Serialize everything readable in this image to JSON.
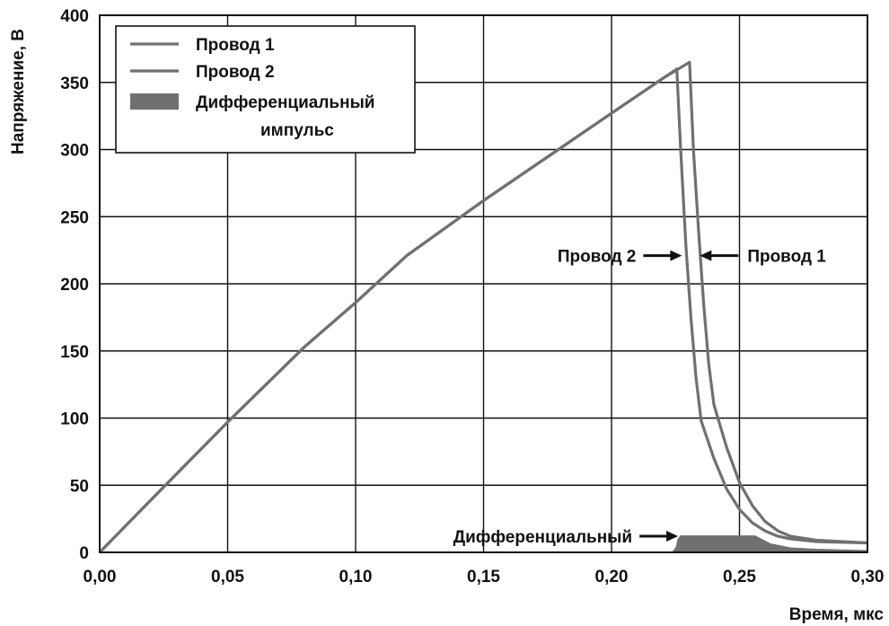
{
  "chart_data": {
    "type": "line",
    "title": "",
    "xlabel": "Время, мкс",
    "ylabel": "Напряжение, В",
    "xlim": [
      0,
      0.3
    ],
    "ylim": [
      0,
      400
    ],
    "grid": true,
    "legend_position": "top-left",
    "x_ticks": [
      {
        "value": 0.0,
        "label": "0,00"
      },
      {
        "value": 0.05,
        "label": "0,05"
      },
      {
        "value": 0.1,
        "label": "0,10"
      },
      {
        "value": 0.15,
        "label": "0,15"
      },
      {
        "value": 0.2,
        "label": "0,20"
      },
      {
        "value": 0.25,
        "label": "0,25"
      },
      {
        "value": 0.3,
        "label": "0,30"
      }
    ],
    "y_ticks": [
      {
        "value": 0,
        "label": "0"
      },
      {
        "value": 50,
        "label": "50"
      },
      {
        "value": 100,
        "label": "100"
      },
      {
        "value": 150,
        "label": "150"
      },
      {
        "value": 200,
        "label": "200"
      },
      {
        "value": 250,
        "label": "250"
      },
      {
        "value": 300,
        "label": "300"
      },
      {
        "value": 350,
        "label": "350"
      },
      {
        "value": 400,
        "label": "400"
      }
    ],
    "series": [
      {
        "name": "Провод 1",
        "kind": "line",
        "color": "#707070",
        "points": [
          [
            0,
            0
          ],
          [
            0.02,
            39
          ],
          [
            0.05,
            97
          ],
          [
            0.08,
            153
          ],
          [
            0.1,
            186
          ],
          [
            0.12,
            221
          ],
          [
            0.15,
            262
          ],
          [
            0.18,
            301
          ],
          [
            0.2,
            327
          ],
          [
            0.22,
            353
          ],
          [
            0.2305,
            365
          ],
          [
            0.232,
            300
          ],
          [
            0.234,
            240
          ],
          [
            0.236,
            185
          ],
          [
            0.238,
            140
          ],
          [
            0.24,
            110
          ],
          [
            0.245,
            78
          ],
          [
            0.25,
            52
          ],
          [
            0.255,
            35
          ],
          [
            0.26,
            23
          ],
          [
            0.265,
            16
          ],
          [
            0.27,
            12
          ],
          [
            0.28,
            9
          ],
          [
            0.29,
            8
          ],
          [
            0.3,
            7
          ]
        ]
      },
      {
        "name": "Провод 2",
        "kind": "line",
        "color": "#707070",
        "points": [
          [
            0,
            0
          ],
          [
            0.02,
            39
          ],
          [
            0.05,
            97
          ],
          [
            0.08,
            153
          ],
          [
            0.1,
            186
          ],
          [
            0.12,
            221
          ],
          [
            0.15,
            262
          ],
          [
            0.18,
            301
          ],
          [
            0.2,
            327
          ],
          [
            0.2255,
            360
          ],
          [
            0.227,
            300
          ],
          [
            0.229,
            230
          ],
          [
            0.231,
            175
          ],
          [
            0.233,
            130
          ],
          [
            0.235,
            98
          ],
          [
            0.24,
            70
          ],
          [
            0.245,
            47
          ],
          [
            0.25,
            32
          ],
          [
            0.255,
            22
          ],
          [
            0.26,
            16
          ],
          [
            0.265,
            12
          ],
          [
            0.27,
            10
          ],
          [
            0.28,
            8
          ],
          [
            0.29,
            7.5
          ],
          [
            0.3,
            7
          ]
        ]
      },
      {
        "name": "Дифференциальный импульс",
        "kind": "area",
        "color": "#707070",
        "points": [
          [
            0,
            0
          ],
          [
            0.224,
            0
          ],
          [
            0.2255,
            4
          ],
          [
            0.226,
            9
          ],
          [
            0.227,
            12
          ],
          [
            0.256,
            12
          ],
          [
            0.258,
            10
          ],
          [
            0.262,
            6
          ],
          [
            0.27,
            3
          ],
          [
            0.28,
            2
          ],
          [
            0.3,
            1
          ]
        ]
      }
    ],
    "legend": [
      {
        "label_lines": [
          "Провод 1"
        ],
        "kind": "line"
      },
      {
        "label_lines": [
          "Провод 2"
        ],
        "kind": "line"
      },
      {
        "label_lines": [
          "Дифференциальный",
          "импульс"
        ],
        "kind": "area"
      }
    ],
    "annotations": [
      {
        "text": "Провод 2",
        "arrow_dir": "right",
        "x": 0.2275,
        "y": 221
      },
      {
        "text": "Провод 1",
        "arrow_dir": "left",
        "x": 0.2345,
        "y": 221
      },
      {
        "text": "Дифференциальный",
        "arrow_dir": "right",
        "x": 0.226,
        "y": 12
      }
    ]
  }
}
